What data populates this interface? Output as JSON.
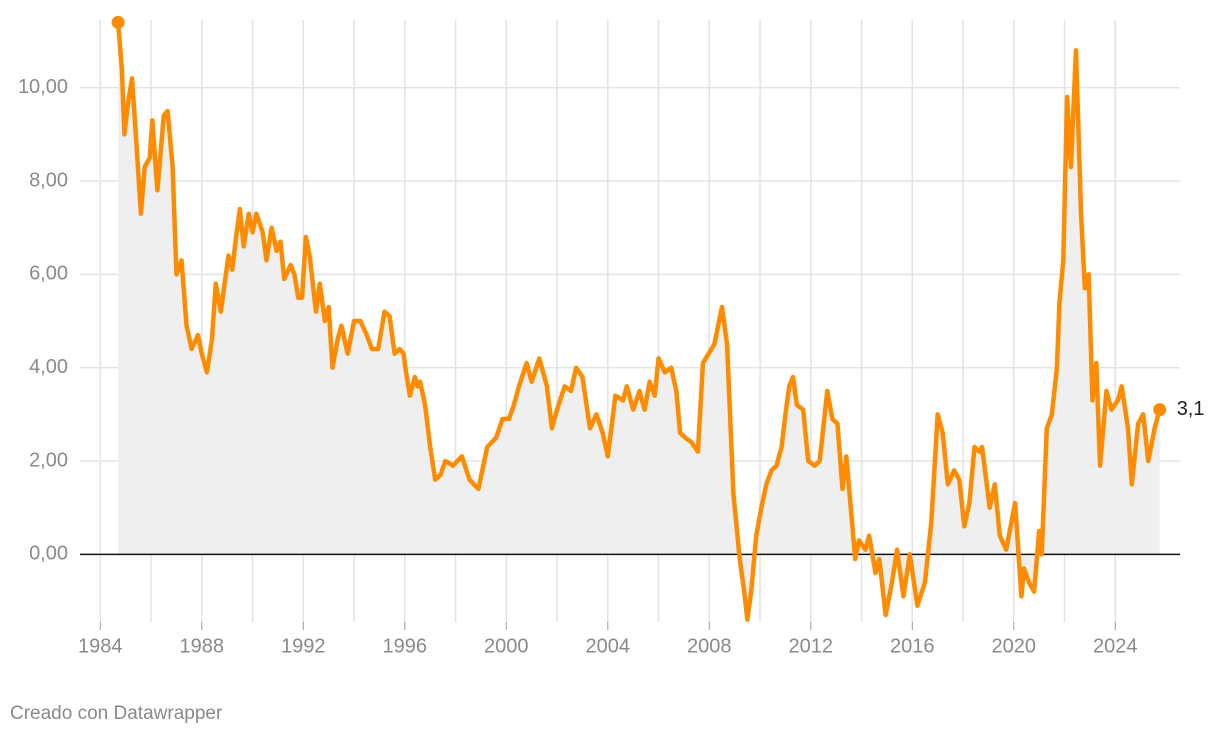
{
  "chart_data": {
    "type": "line",
    "color": "#ff8c00",
    "area": true,
    "grid": true,
    "source": "Creado con Datawrapper",
    "last_value_label": "3,1",
    "xlim": [
      1983.2,
      2026.55
    ],
    "xticks": [
      1984,
      1988,
      1992,
      1996,
      2000,
      2004,
      2008,
      2012,
      2016,
      2020,
      2024
    ],
    "xminor": [
      1986,
      1990,
      1994,
      1998,
      2002,
      2006,
      2010,
      2014,
      2018,
      2022
    ],
    "ylim": [
      -1.45,
      11.45
    ],
    "yticks": [
      {
        "value": 0,
        "label": "0,00"
      },
      {
        "value": 2,
        "label": "2,00"
      },
      {
        "value": 4,
        "label": "4,00"
      },
      {
        "value": 6,
        "label": "6,00"
      },
      {
        "value": 8,
        "label": "8,00"
      },
      {
        "value": 10,
        "label": "10,00"
      }
    ],
    "x": [
      1984.7,
      1984.85,
      1984.95,
      1985.1,
      1985.25,
      1985.4,
      1985.6,
      1985.75,
      1985.95,
      1986.05,
      1986.25,
      1986.5,
      1986.65,
      1986.85,
      1987.0,
      1987.2,
      1987.4,
      1987.6,
      1987.85,
      1988.0,
      1988.2,
      1988.4,
      1988.55,
      1988.75,
      1989.05,
      1989.2,
      1989.35,
      1989.5,
      1989.65,
      1989.85,
      1990.0,
      1990.15,
      1990.4,
      1990.55,
      1990.75,
      1990.95,
      1991.1,
      1991.25,
      1991.5,
      1991.65,
      1991.8,
      1991.95,
      1992.1,
      1992.25,
      1992.5,
      1992.65,
      1992.85,
      1993.0,
      1993.15,
      1993.35,
      1993.5,
      1993.75,
      1994.0,
      1994.25,
      1994.5,
      1994.7,
      1994.95,
      1995.2,
      1995.4,
      1995.6,
      1995.8,
      1995.95,
      1996.05,
      1996.2,
      1996.4,
      1996.5,
      1996.6,
      1996.8,
      1997.0,
      1997.2,
      1997.4,
      1997.6,
      1997.9,
      1998.25,
      1998.55,
      1998.9,
      1999.25,
      1999.6,
      1999.85,
      2000.1,
      2000.3,
      2000.5,
      2000.8,
      2001.0,
      2001.3,
      2001.6,
      2001.8,
      2002.0,
      2002.3,
      2002.55,
      2002.75,
      2003.0,
      2003.3,
      2003.55,
      2003.8,
      2004.0,
      2004.3,
      2004.6,
      2004.75,
      2005.0,
      2005.25,
      2005.45,
      2005.65,
      2005.85,
      2006.0,
      2006.25,
      2006.5,
      2006.7,
      2006.85,
      2007.05,
      2007.3,
      2007.55,
      2007.75,
      2008.2,
      2008.5,
      2008.7,
      2008.95,
      2009.2,
      2009.4,
      2009.5,
      2009.65,
      2009.85,
      2010.05,
      2010.25,
      2010.45,
      2010.65,
      2010.85,
      2011.0,
      2011.15,
      2011.3,
      2011.45,
      2011.7,
      2011.9,
      2012.15,
      2012.35,
      2012.65,
      2012.85,
      2013.05,
      2013.25,
      2013.4,
      2013.75,
      2013.9,
      2014.15,
      2014.3,
      2014.55,
      2014.7,
      2014.95,
      2015.2,
      2015.4,
      2015.65,
      2015.9,
      2016.2,
      2016.5,
      2016.75,
      2017.0,
      2017.2,
      2017.4,
      2017.65,
      2017.85,
      2018.05,
      2018.25,
      2018.45,
      2018.65,
      2018.75,
      2019.05,
      2019.25,
      2019.45,
      2019.7,
      2020.05,
      2020.3,
      2020.4,
      2020.6,
      2020.8,
      2021.0,
      2021.1,
      2021.3,
      2021.5,
      2021.7,
      2021.8,
      2021.95,
      2022.1,
      2022.25,
      2022.45,
      2022.65,
      2022.8,
      2022.95,
      2023.1,
      2023.25,
      2023.4,
      2023.65,
      2023.85,
      2024.1,
      2024.25,
      2024.5,
      2024.65,
      2024.9,
      2025.1,
      2025.3,
      2025.55,
      2025.75
    ],
    "values": [
      11.4,
      10.4,
      9.0,
      9.7,
      10.2,
      9.0,
      7.3,
      8.3,
      8.5,
      9.3,
      7.8,
      9.4,
      9.5,
      8.3,
      6.0,
      6.3,
      4.9,
      4.4,
      4.7,
      4.3,
      3.9,
      4.6,
      5.8,
      5.2,
      6.4,
      6.1,
      6.8,
      7.4,
      6.6,
      7.3,
      6.9,
      7.3,
      6.9,
      6.3,
      7.0,
      6.5,
      6.7,
      5.9,
      6.2,
      6.0,
      5.5,
      5.5,
      6.8,
      6.4,
      5.2,
      5.8,
      5.0,
      5.3,
      4.0,
      4.6,
      4.9,
      4.3,
      5.0,
      5.0,
      4.7,
      4.4,
      4.4,
      5.2,
      5.1,
      4.3,
      4.4,
      4.3,
      3.9,
      3.4,
      3.8,
      3.6,
      3.7,
      3.2,
      2.3,
      1.6,
      1.7,
      2.0,
      1.9,
      2.1,
      1.6,
      1.4,
      2.3,
      2.5,
      2.9,
      2.9,
      3.2,
      3.6,
      4.1,
      3.7,
      4.2,
      3.6,
      2.7,
      3.1,
      3.6,
      3.5,
      4.0,
      3.8,
      2.7,
      3.0,
      2.6,
      2.1,
      3.4,
      3.3,
      3.6,
      3.1,
      3.5,
      3.1,
      3.7,
      3.4,
      4.2,
      3.9,
      4.0,
      3.5,
      2.6,
      2.5,
      2.4,
      2.2,
      4.1,
      4.5,
      5.3,
      4.5,
      1.3,
      -0.1,
      -0.9,
      -1.4,
      -0.8,
      0.4,
      1.0,
      1.5,
      1.8,
      1.9,
      2.3,
      3.0,
      3.6,
      3.8,
      3.2,
      3.1,
      2.0,
      1.9,
      2.0,
      3.5,
      2.9,
      2.8,
      1.4,
      2.1,
      -0.1,
      0.3,
      0.1,
      0.4,
      -0.4,
      -0.1,
      -1.3,
      -0.6,
      0.1,
      -0.9,
      0.0,
      -1.1,
      -0.6,
      0.7,
      3.0,
      2.6,
      1.5,
      1.8,
      1.6,
      0.6,
      1.1,
      2.3,
      2.2,
      2.3,
      1.0,
      1.5,
      0.4,
      0.1,
      1.1,
      -0.9,
      -0.3,
      -0.6,
      -0.8,
      0.5,
      0.0,
      2.7,
      3.0,
      4.0,
      5.4,
      6.3,
      9.8,
      8.3,
      10.8,
      7.3,
      5.7,
      6.0,
      3.3,
      4.1,
      1.9,
      3.5,
      3.1,
      3.3,
      3.6,
      2.7,
      1.5,
      2.8,
      3.0,
      2.0,
      2.7,
      3.1
    ]
  }
}
